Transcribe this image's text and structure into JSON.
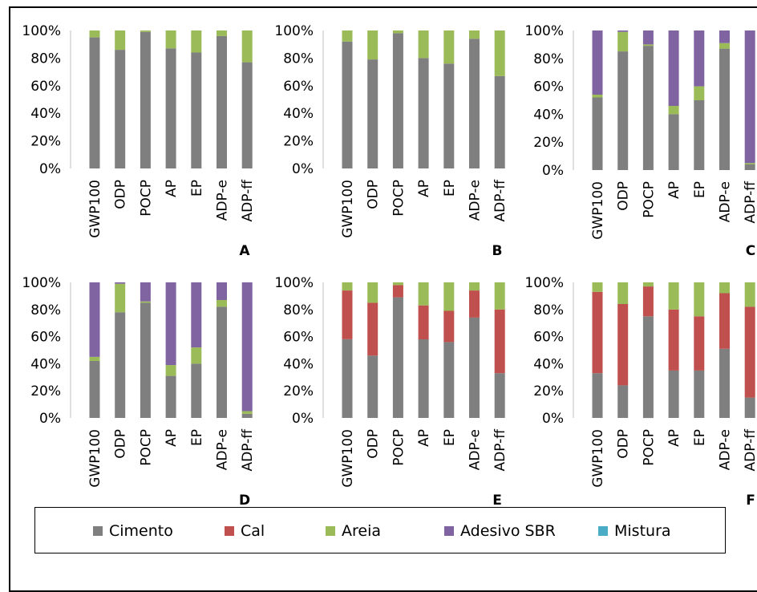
{
  "chart_data": [
    {
      "type": "bar",
      "stacked": true,
      "panel": "A",
      "categories": [
        "GWP100",
        "ODP",
        "POCP",
        "AP",
        "EP",
        "ADP-e",
        "ADP-ff"
      ],
      "ylim": [
        0,
        100
      ],
      "yticks": [
        "0%",
        "20%",
        "40%",
        "60%",
        "80%",
        "100%"
      ],
      "series": [
        {
          "name": "Cimento",
          "values": [
            95,
            86,
            99,
            87,
            84,
            96,
            77
          ]
        },
        {
          "name": "Cal",
          "values": [
            0,
            0,
            0,
            0,
            0,
            0,
            0
          ]
        },
        {
          "name": "Areia",
          "values": [
            5,
            14,
            1,
            13,
            16,
            4,
            23
          ]
        },
        {
          "name": "Adesivo SBR",
          "values": [
            0,
            0,
            0,
            0,
            0,
            0,
            0
          ]
        },
        {
          "name": "Mistura",
          "values": [
            0,
            0,
            0,
            0,
            0,
            0,
            0
          ]
        }
      ]
    },
    {
      "type": "bar",
      "stacked": true,
      "panel": "B",
      "categories": [
        "GWP100",
        "ODP",
        "POCP",
        "AP",
        "EP",
        "ADP-e",
        "ADP-ff"
      ],
      "ylim": [
        0,
        100
      ],
      "yticks": [
        "0%",
        "20%",
        "40%",
        "60%",
        "80%",
        "100%"
      ],
      "series": [
        {
          "name": "Cimento",
          "values": [
            92,
            79,
            98,
            80,
            76,
            94,
            67
          ]
        },
        {
          "name": "Cal",
          "values": [
            0,
            0,
            0,
            0,
            0,
            0,
            0
          ]
        },
        {
          "name": "Areia",
          "values": [
            8,
            21,
            2,
            20,
            24,
            6,
            33
          ]
        },
        {
          "name": "Adesivo SBR",
          "values": [
            0,
            0,
            0,
            0,
            0,
            0,
            0
          ]
        },
        {
          "name": "Mistura",
          "values": [
            0,
            0,
            0,
            0,
            0,
            0,
            0
          ]
        }
      ]
    },
    {
      "type": "bar",
      "stacked": true,
      "panel": "C",
      "categories": [
        "GWP100",
        "ODP",
        "POCP",
        "AP",
        "EP",
        "ADP-e",
        "ADP-ff"
      ],
      "ylim": [
        0,
        100
      ],
      "yticks": [
        "0%",
        "20%",
        "40%",
        "60%",
        "80%",
        "100%"
      ],
      "series": [
        {
          "name": "Cimento",
          "values": [
            52,
            85,
            89,
            40,
            50,
            87,
            4
          ]
        },
        {
          "name": "Cal",
          "values": [
            0,
            0,
            0,
            0,
            0,
            0,
            0
          ]
        },
        {
          "name": "Areia",
          "values": [
            2,
            14,
            1,
            6,
            10,
            4,
            1
          ]
        },
        {
          "name": "Adesivo SBR",
          "values": [
            46,
            1,
            10,
            54,
            40,
            9,
            95
          ]
        },
        {
          "name": "Mistura",
          "values": [
            0,
            0,
            0,
            0,
            0,
            0,
            0
          ]
        }
      ]
    },
    {
      "type": "bar",
      "stacked": true,
      "panel": "D",
      "categories": [
        "GWP100",
        "ODP",
        "POCP",
        "AP",
        "EP",
        "ADP-e",
        "ADP-ff"
      ],
      "ylim": [
        0,
        100
      ],
      "yticks": [
        "0%",
        "20%",
        "40%",
        "60%",
        "80%",
        "100%"
      ],
      "series": [
        {
          "name": "Cimento",
          "values": [
            42,
            78,
            85,
            31,
            40,
            82,
            3
          ]
        },
        {
          "name": "Cal",
          "values": [
            0,
            0,
            0,
            0,
            0,
            0,
            0
          ]
        },
        {
          "name": "Areia",
          "values": [
            3,
            21,
            1,
            8,
            12,
            5,
            2
          ]
        },
        {
          "name": "Adesivo SBR",
          "values": [
            55,
            1,
            14,
            61,
            48,
            13,
            95
          ]
        },
        {
          "name": "Mistura",
          "values": [
            0,
            0,
            0,
            0,
            0,
            0,
            0
          ]
        }
      ]
    },
    {
      "type": "bar",
      "stacked": true,
      "panel": "E",
      "categories": [
        "GWP100",
        "ODP",
        "POCP",
        "AP",
        "EP",
        "ADP-e",
        "ADP-ff"
      ],
      "ylim": [
        0,
        100
      ],
      "yticks": [
        "0%",
        "20%",
        "40%",
        "60%",
        "80%",
        "100%"
      ],
      "series": [
        {
          "name": "Cimento",
          "values": [
            58,
            46,
            89,
            58,
            56,
            74,
            33
          ]
        },
        {
          "name": "Cal",
          "values": [
            36,
            39,
            9,
            25,
            23,
            20,
            47
          ]
        },
        {
          "name": "Areia",
          "values": [
            6,
            15,
            2,
            17,
            21,
            6,
            20
          ]
        },
        {
          "name": "Adesivo SBR",
          "values": [
            0,
            0,
            0,
            0,
            0,
            0,
            0
          ]
        },
        {
          "name": "Mistura",
          "values": [
            0,
            0,
            0,
            0,
            0,
            0,
            0
          ]
        }
      ]
    },
    {
      "type": "bar",
      "stacked": true,
      "panel": "F",
      "categories": [
        "GWP100",
        "ODP",
        "POCP",
        "AP",
        "EP",
        "ADP-e",
        "ADP-ff"
      ],
      "ylim": [
        0,
        100
      ],
      "yticks": [
        "0%",
        "20%",
        "40%",
        "60%",
        "80%",
        "100%"
      ],
      "series": [
        {
          "name": "Cimento",
          "values": [
            33,
            24,
            75,
            35,
            35,
            51,
            15
          ]
        },
        {
          "name": "Cal",
          "values": [
            60,
            60,
            22,
            45,
            40,
            41,
            67
          ]
        },
        {
          "name": "Areia",
          "values": [
            7,
            16,
            3,
            20,
            25,
            8,
            18
          ]
        },
        {
          "name": "Adesivo SBR",
          "values": [
            0,
            0,
            0,
            0,
            0,
            0,
            0
          ]
        },
        {
          "name": "Mistura",
          "values": [
            0,
            0,
            0,
            0,
            0,
            0,
            0
          ]
        }
      ]
    }
  ],
  "colors": {
    "Cimento": "#7f7f7f",
    "Cal": "#c0504d",
    "Areia": "#9bbb59",
    "Adesivo SBR": "#8064a2",
    "Mistura": "#4bacc6"
  },
  "legend": {
    "position": "bottom",
    "items": [
      {
        "label": "Cimento",
        "color": "#7f7f7f"
      },
      {
        "label": "Cal",
        "color": "#c0504d"
      },
      {
        "label": "Areia",
        "color": "#9bbb59"
      },
      {
        "label": "Adesivo SBR",
        "color": "#8064a2"
      },
      {
        "label": "Mistura",
        "color": "#4bacc6"
      }
    ]
  }
}
